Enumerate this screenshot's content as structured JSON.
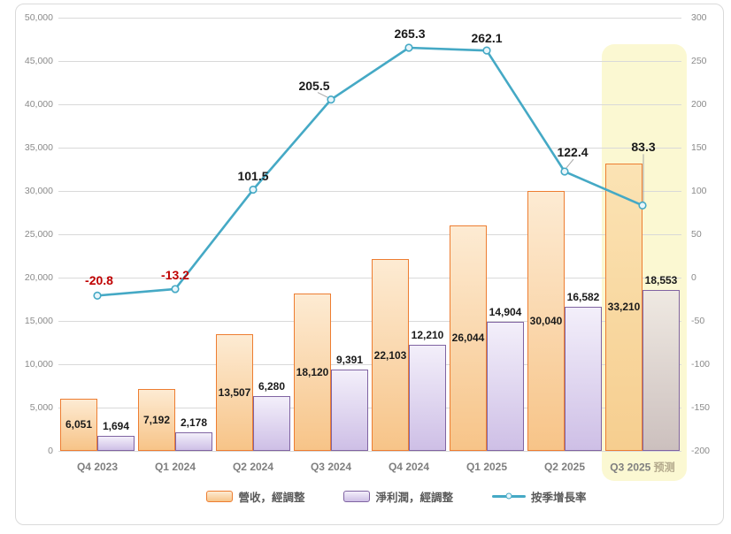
{
  "chart_data": {
    "type": "combo",
    "title": "",
    "categories": [
      {
        "label": "Q4 2023"
      },
      {
        "label": "Q1 2024"
      },
      {
        "label": "Q2 2024"
      },
      {
        "label": "Q3 2024"
      },
      {
        "label": "Q4 2024"
      },
      {
        "label": "Q1 2025"
      },
      {
        "label": "Q2 2025"
      },
      {
        "label": "Q3 2025",
        "suffix": "预测",
        "forecast": true
      }
    ],
    "series": [
      {
        "name": "營收，經調整",
        "type": "bar",
        "axis": "left",
        "values": [
          6051,
          7192,
          13507,
          18120,
          22103,
          26044,
          30040,
          33210
        ],
        "labels": [
          "6,051",
          "7,192",
          "13,507",
          "18,120",
          "22,103",
          "26,044",
          "30,040",
          "33,210"
        ],
        "border_color": "#ED7D31",
        "fill_top": "#FDEBD3",
        "fill_bottom": "#F7C488",
        "forecast_fill_top": "#FBE3B4",
        "forecast_fill_bottom": "#F6CE8F"
      },
      {
        "name": "淨利潤，經調整",
        "type": "bar",
        "axis": "left",
        "values": [
          1694,
          2178,
          6280,
          9391,
          12210,
          14904,
          16582,
          18553
        ],
        "labels": [
          "1,694",
          "2,178",
          "6,280",
          "9,391",
          "12,210",
          "14,904",
          "16,582",
          "18,553"
        ],
        "border_color": "#8064A2",
        "fill_top": "#F3EFFA",
        "fill_bottom": "#CEBFE6",
        "forecast_fill_top": "#EFE9E2",
        "forecast_fill_bottom": "#CCC0BE"
      },
      {
        "name": "按季增長率",
        "type": "line",
        "axis": "right",
        "values": [
          -20.8,
          -13.2,
          101.5,
          205.5,
          265.3,
          262.1,
          122.4,
          83.3
        ],
        "labels": [
          "-20.8",
          "-13.2",
          "101.5",
          "205.5",
          "265.3",
          "262.1",
          "122.4",
          "83.3"
        ],
        "line_color": "#45A9C5",
        "marker_fill": "#E9F6FB",
        "negative_label_color": "#C00000",
        "positive_label_color": "#1A1A1A"
      }
    ],
    "left_axis": {
      "min": 0,
      "max": 50000,
      "step": 5000,
      "ticks": [
        "0",
        "5,000",
        "10,000",
        "15,000",
        "20,000",
        "25,000",
        "30,000",
        "35,000",
        "40,000",
        "45,000",
        "50,000"
      ]
    },
    "right_axis": {
      "min": -200,
      "max": 300,
      "step": 50,
      "ticks": [
        "-200",
        "-150",
        "-100",
        "-50",
        "0",
        "50",
        "100",
        "150",
        "200",
        "250",
        "300"
      ]
    },
    "grid": true,
    "legend_position": "bottom",
    "forecast_highlight_color": "#FBF8D2",
    "gridline_color": "#D9D9D9",
    "axis_text_color": "#8A8A8A",
    "category_text_color": "#7F7F7F",
    "forecast_suffix_color": "#B3A98C"
  },
  "legend": {
    "items": [
      {
        "label": "營收，經調整",
        "swatch": "bar-orange"
      },
      {
        "label": "淨利潤，經調整",
        "swatch": "bar-purple"
      },
      {
        "label": "按季增長率",
        "swatch": "line-teal"
      }
    ]
  }
}
